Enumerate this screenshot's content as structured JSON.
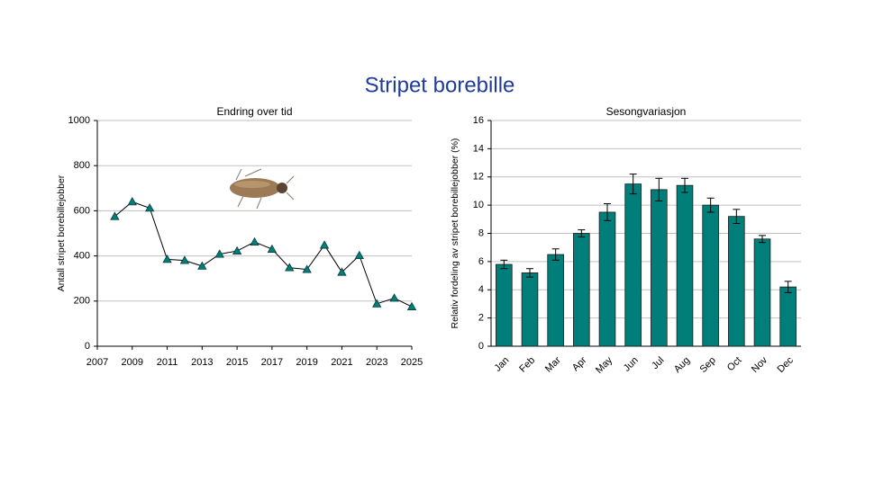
{
  "title": "Stripet borebille",
  "chart_data": [
    {
      "type": "line",
      "title": "Endring over tid",
      "y_label": "Antall stripet borebillejobber",
      "x": [
        2008,
        2009,
        2010,
        2011,
        2012,
        2013,
        2014,
        2015,
        2016,
        2017,
        2018,
        2019,
        2020,
        2021,
        2022,
        2023,
        2024,
        2025
      ],
      "values": [
        575,
        640,
        612,
        385,
        380,
        355,
        408,
        422,
        462,
        430,
        348,
        340,
        448,
        328,
        402,
        188,
        213,
        175
      ],
      "color": "#007f7a",
      "line_color": "#000000",
      "xlim": [
        2007,
        2025
      ],
      "xticks": [
        2007,
        2009,
        2011,
        2013,
        2015,
        2017,
        2019,
        2021,
        2023,
        2025
      ],
      "ylim": [
        0,
        1000
      ],
      "yticks": [
        0,
        200,
        400,
        600,
        800,
        1000
      ],
      "grid": true
    },
    {
      "type": "bar",
      "title": "Sesongvariasjon",
      "y_label": "Relativ fordeling av stripet borebillejobber (%)",
      "categories": [
        "Jan",
        "Feb",
        "Mar",
        "Apr",
        "May",
        "Jun",
        "Jul",
        "Aug",
        "Sep",
        "Oct",
        "Nov",
        "Dec"
      ],
      "values": [
        5.8,
        5.2,
        6.5,
        8.0,
        9.5,
        11.5,
        11.1,
        11.4,
        10.0,
        9.2,
        7.6,
        4.2
      ],
      "errors": [
        0.3,
        0.3,
        0.4,
        0.25,
        0.6,
        0.7,
        0.8,
        0.5,
        0.5,
        0.5,
        0.25,
        0.4
      ],
      "color": "#007f7a",
      "ylim": [
        0,
        16
      ],
      "yticks": [
        0,
        2,
        4,
        6,
        8,
        10,
        12,
        14,
        16
      ],
      "grid": true
    }
  ]
}
